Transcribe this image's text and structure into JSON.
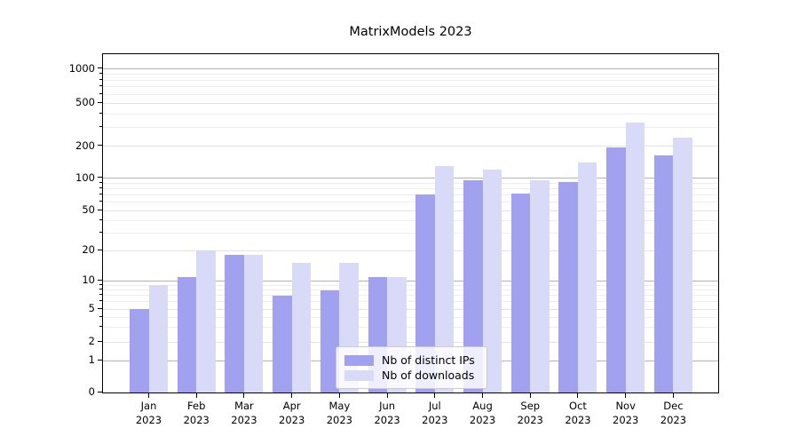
{
  "title": "MatrixModels 2023",
  "chart_data": {
    "type": "bar",
    "title": "MatrixModels 2023",
    "categories": [
      "Jan 2023",
      "Feb 2023",
      "Mar 2023",
      "Apr 2023",
      "May 2023",
      "Jun 2023",
      "Jul 2023",
      "Aug 2023",
      "Sep 2023",
      "Oct 2023",
      "Nov 2023",
      "Dec 2023"
    ],
    "series": [
      {
        "name": "Nb of distinct IPs",
        "color": "#a1a1f0",
        "values": [
          5,
          11,
          18,
          7,
          8,
          11,
          71,
          97,
          72,
          93,
          195,
          165
        ]
      },
      {
        "name": "Nb of downloads",
        "color": "#d9d9f8",
        "values": [
          9,
          20,
          18,
          15,
          15,
          11,
          130,
          120,
          97,
          140,
          330,
          240
        ]
      }
    ],
    "y_ticks": [
      0,
      1,
      2,
      5,
      10,
      20,
      50,
      100,
      200,
      500,
      1000
    ],
    "y_scale": "symlog",
    "ylim": [
      0,
      1200
    ],
    "xlabel": "",
    "ylabel": "",
    "grid": true,
    "legend_position": "lower center"
  }
}
